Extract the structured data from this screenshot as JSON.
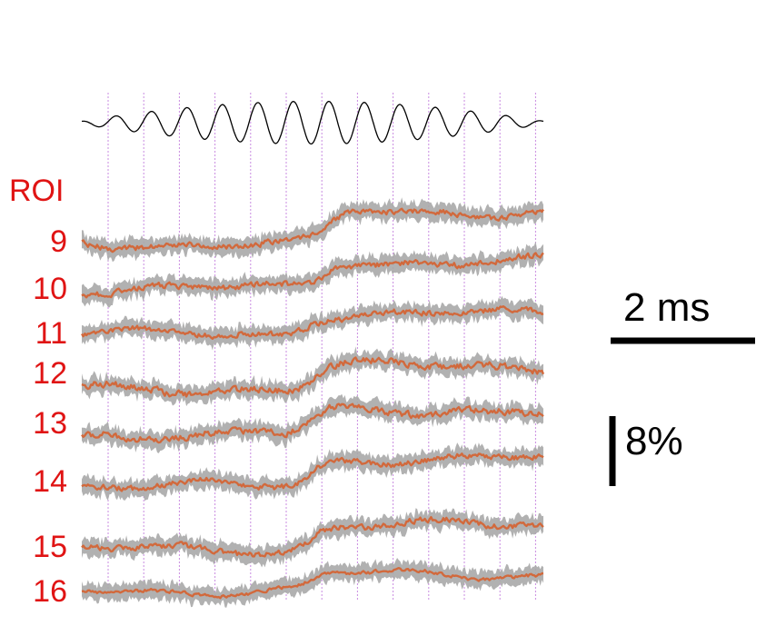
{
  "chart_data": {
    "type": "line",
    "roi_header": "ROI",
    "rois": [
      "9",
      "10",
      "11",
      "12",
      "13",
      "14",
      "15",
      "16"
    ],
    "stimulus": {
      "cycles": 13,
      "color": "#000000"
    },
    "trace_color": "#d2693c",
    "error_band_color": "#a9a9a9",
    "marker_line_color": "#c98be0",
    "marker_line_count": 13,
    "scale_bar_time": {
      "value": 2,
      "label": "2 ms"
    },
    "scale_bar_amplitude": {
      "value": 8,
      "label": "8%"
    },
    "grid": false
  }
}
